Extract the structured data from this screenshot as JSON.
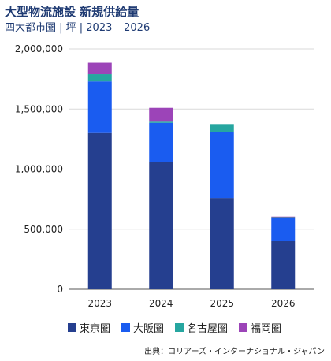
{
  "header": {
    "title": "大型物流施設 新規供給量",
    "subtitle": "四大都市圏 | 坪 | 2023 – 2026"
  },
  "source": "出典：コリアーズ・インターナショナル・ジャパン",
  "chart_data": {
    "type": "bar",
    "stacked": true,
    "categories": [
      "2023",
      "2024",
      "2025",
      "2026"
    ],
    "series": [
      {
        "name": "東京圏",
        "color": "#253f8f",
        "values": [
          1300000,
          1060000,
          760000,
          400000
        ]
      },
      {
        "name": "大阪圏",
        "color": "#1a5cf0",
        "values": [
          430000,
          325000,
          545000,
          195000
        ]
      },
      {
        "name": "名古屋圏",
        "color": "#26a6a0",
        "values": [
          60000,
          10000,
          70000,
          5000
        ]
      },
      {
        "name": "福岡圏",
        "color": "#9c44b8",
        "values": [
          95000,
          115000,
          0,
          5000
        ]
      }
    ],
    "ylim": [
      0,
      2000000
    ],
    "yticks": [
      0,
      500000,
      1000000,
      1500000,
      2000000
    ],
    "ytick_labels": [
      "0",
      "500,000",
      "1,000,000",
      "1,500,000",
      "2,000,000"
    ],
    "grid": true,
    "legend_position": "bottom"
  }
}
